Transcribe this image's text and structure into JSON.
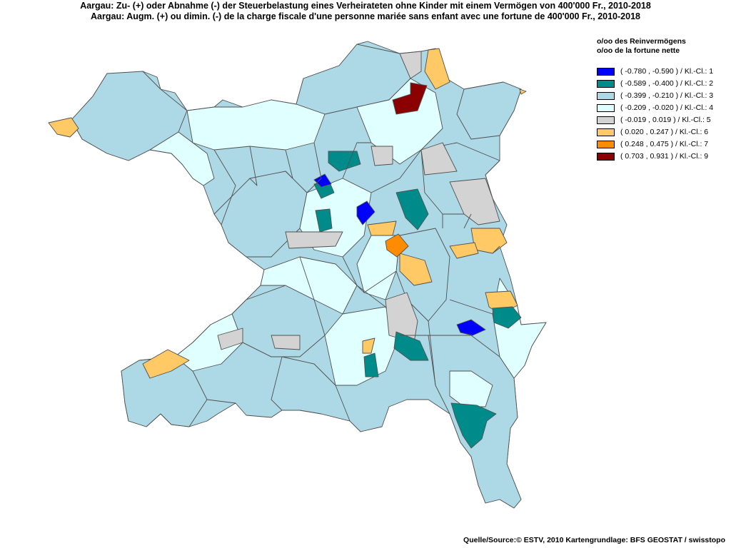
{
  "title": {
    "line_de": "Aargau: Zu- (+) oder Abnahme (-) der Steuerbelastung  eines Verheirateten ohne Kinder mit einem Vermögen von 400'000 Fr., 2010-2018",
    "line_fr": "Aargau: Augm. (+) ou dimin. (-) de la charge fiscale d'une personne mariée sans enfant avec une fortune de 400'000 Fr., 2010-2018"
  },
  "legend": {
    "title_de": "o/oo des Reinvermögens",
    "title_fr": "o/oo de la fortune nette",
    "classes": [
      {
        "label": "( -0.780 , -0.590 ) / Kl.-Cl.: 1",
        "color": "#0000ff"
      },
      {
        "label": "( -0.589 , -0.400 ) / Kl.-Cl.: 2",
        "color": "#008b8b"
      },
      {
        "label": "( -0.399 , -0.210 ) / Kl.-Cl.: 3",
        "color": "#add8e6"
      },
      {
        "label": "( -0.209 , -0.020 ) / Kl.-Cl.: 4",
        "color": "#e0ffff"
      },
      {
        "label": "( -0.019 , 0.019 ) / Kl.-Cl.: 5",
        "color": "#d3d3d3"
      },
      {
        "label": "( 0.020 , 0.247 ) / Kl.-Cl.: 6",
        "color": "#ffc966"
      },
      {
        "label": "( 0.248 , 0.475 ) / Kl.-Cl.: 7",
        "color": "#ff8c00"
      },
      {
        "label": "( 0.703 , 0.931 ) / Kl.-Cl.: 9",
        "color": "#8b0000"
      }
    ]
  },
  "source": "Quelle/Source:© ESTV, 2010 Kartengrundlage: BFS GEOSTAT / swisstopo"
}
